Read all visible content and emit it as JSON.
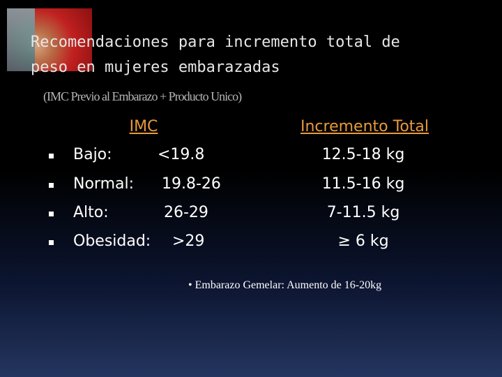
{
  "slide": {
    "title": [
      "Recomendaciones para incremento total de",
      "peso en mujeres embarazadas"
    ],
    "subtitle": "(IMC Previo al Embarazo + Producto Unico)",
    "headers": [
      "IMC",
      "Incremento Total"
    ],
    "rows": [
      [
        "Bajo:",
        "<19.8",
        "12.5-18 kg"
      ],
      [
        "Normal:",
        "19.8-26",
        "11.5-16 kg"
      ],
      [
        "Alto:",
        "26-29",
        "7-11.5 kg"
      ],
      [
        "Obesidad:",
        ">29",
        "≥ 6 kg"
      ]
    ],
    "note": "• Embarazo Gemelar: Aumento de 16-20kg"
  }
}
